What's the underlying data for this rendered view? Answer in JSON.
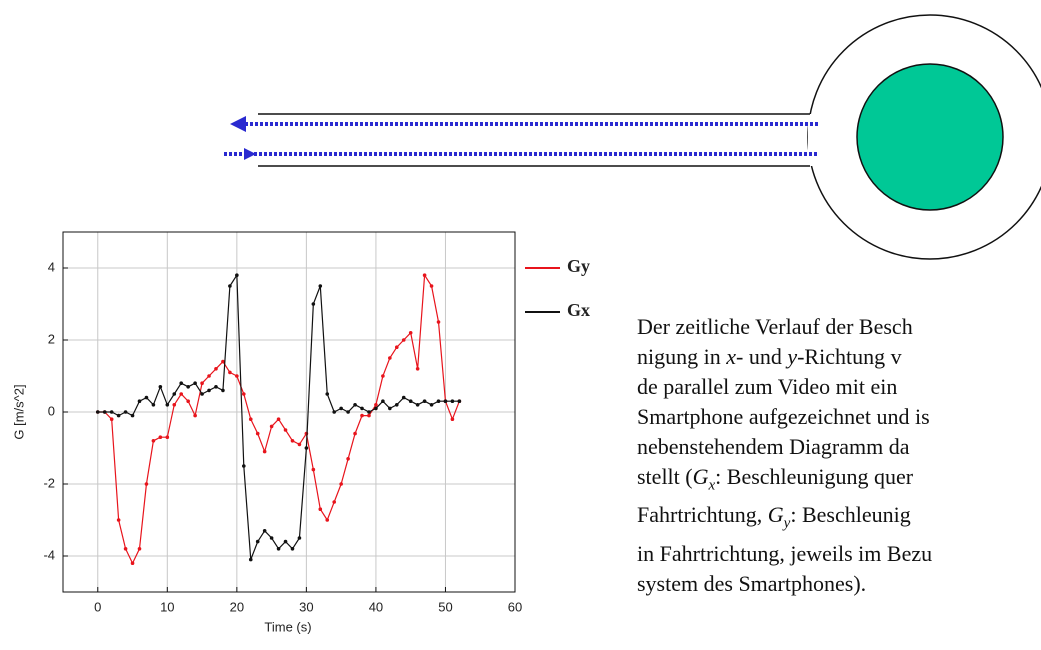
{
  "chart_data": {
    "type": "line",
    "x_label": "Time (s)",
    "y_label": "G [m/s^2]",
    "x": [
      0,
      1,
      2,
      3,
      4,
      5,
      6,
      7,
      8,
      9,
      10,
      11,
      12,
      13,
      14,
      15,
      16,
      17,
      18,
      19,
      20,
      21,
      22,
      23,
      24,
      25,
      26,
      27,
      28,
      29,
      30,
      31,
      32,
      33,
      34,
      35,
      36,
      37,
      38,
      39,
      40,
      41,
      42,
      43,
      44,
      45,
      46,
      47,
      48,
      49,
      50,
      51,
      52
    ],
    "series": [
      {
        "name": "Gy",
        "color": "#e8141c",
        "values": [
          0,
          0,
          -0.2,
          -3.0,
          -3.8,
          -4.2,
          -3.8,
          -2.0,
          -0.8,
          -0.7,
          -0.7,
          0.2,
          0.5,
          0.3,
          -0.1,
          0.8,
          1.0,
          1.2,
          1.4,
          1.1,
          1.0,
          0.5,
          -0.2,
          -0.6,
          -1.1,
          -0.4,
          -0.2,
          -0.5,
          -0.8,
          -0.9,
          -0.6,
          -1.6,
          -2.7,
          -3.0,
          -2.5,
          -2.0,
          -1.3,
          -0.6,
          -0.1,
          -0.1,
          0.2,
          1.0,
          1.5,
          1.8,
          2.0,
          2.2,
          1.2,
          3.8,
          3.5,
          2.5,
          0.3,
          -0.2,
          0.3
        ]
      },
      {
        "name": "Gx",
        "color": "#111111",
        "values": [
          0,
          0,
          0,
          -0.1,
          0,
          -0.1,
          0.3,
          0.4,
          0.2,
          0.7,
          0.2,
          0.5,
          0.8,
          0.7,
          0.8,
          0.5,
          0.6,
          0.7,
          0.6,
          3.5,
          3.8,
          -1.5,
          -4.1,
          -3.6,
          -3.3,
          -3.5,
          -3.8,
          -3.6,
          -3.8,
          -3.5,
          -1.0,
          3.0,
          3.5,
          0.5,
          0,
          0.1,
          0,
          0.2,
          0.1,
          0,
          0.1,
          0.3,
          0.1,
          0.2,
          0.4,
          0.3,
          0.2,
          0.3,
          0.2,
          0.3,
          0.3,
          0.3,
          0.3
        ]
      }
    ],
    "xlim": [
      -5,
      60
    ],
    "xticks": [
      0,
      10,
      20,
      30,
      40,
      50,
      60
    ],
    "ylim": [
      -5,
      5
    ],
    "yticks": [
      -4,
      -2,
      0,
      2,
      4
    ],
    "grid": true,
    "legend": "right"
  },
  "text": {
    "lines": [
      [
        "Der zeitliche Verlauf der Besch"
      ],
      [
        "nigung in ",
        "x",
        "- und ",
        "y",
        "-Richtung v"
      ],
      [
        "de parallel zum Video mit ein"
      ],
      [
        "Smartphone aufgezeichnet und is"
      ],
      [
        "nebenstehendem Diagramm da"
      ],
      [
        "stellt (",
        "G",
        "x",
        ": Beschleunigung quer"
      ],
      [
        "Fahrtrichtung, ",
        "G",
        "y",
        ": Beschleunig"
      ],
      [
        "in Fahrtrichtung, jeweils im Bezu"
      ],
      [
        "system des Smartphones)."
      ]
    ]
  }
}
